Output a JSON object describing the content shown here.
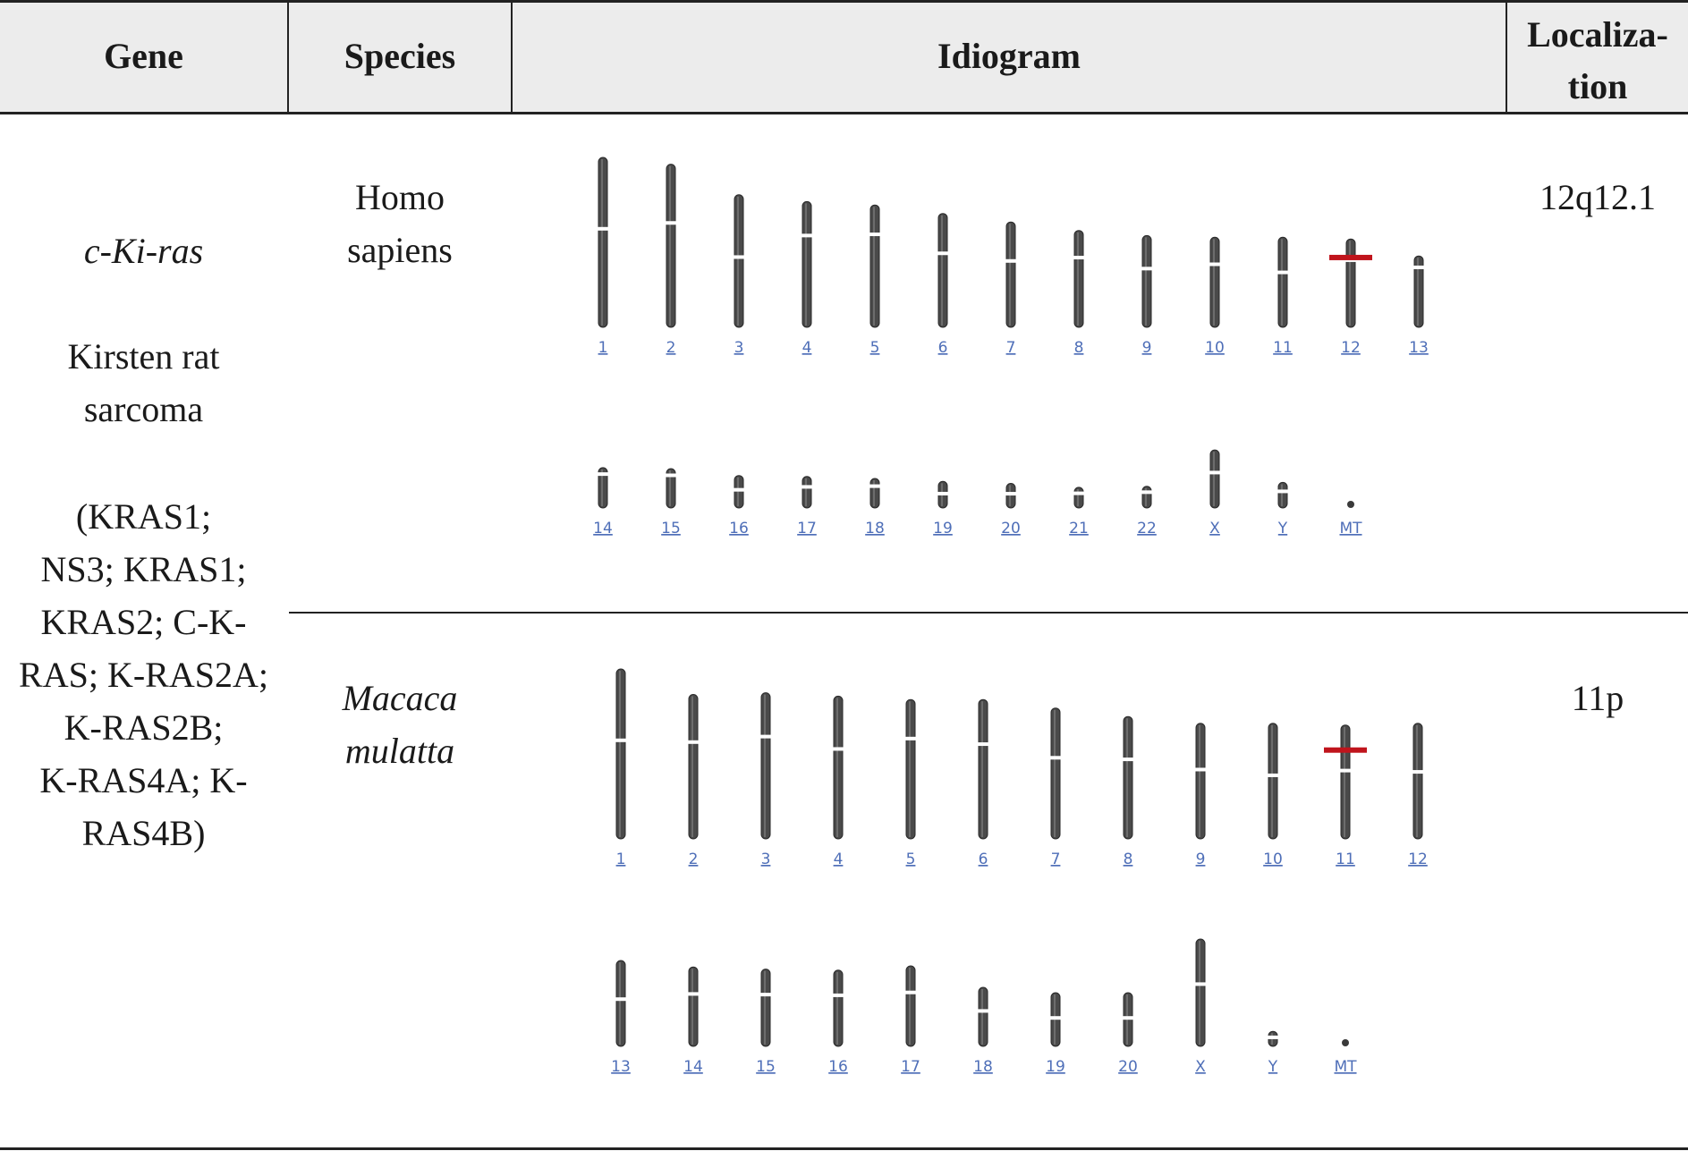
{
  "headers": {
    "gene": "Gene",
    "species": "Species",
    "idiogram": "Idiogram",
    "localization_line1": "Localiza-",
    "localization_line2": "tion"
  },
  "gene": {
    "symbol": "c-Ki-ras",
    "name_line1": "Kirsten rat",
    "name_line2": "sarcoma",
    "aliases_lines": [
      "(KRAS1;",
      "NS3; KRAS1;",
      "KRAS2; C-K-",
      "RAS; K-RAS2A;",
      "K-RAS2B;",
      "K-RAS4A; K-",
      "RAS4B)"
    ]
  },
  "rows": [
    {
      "species_line1": "Homo",
      "species_line2": "sapiens",
      "localization": "12q12.1",
      "marker_color": "#c0141c",
      "idiogram": {
        "rows": [
          [
            {
              "label": "1",
              "length": 1.0,
              "cen": 0.42
            },
            {
              "label": "2",
              "length": 0.96,
              "cen": 0.36
            },
            {
              "label": "3",
              "length": 0.78,
              "cen": 0.47
            },
            {
              "label": "4",
              "length": 0.74,
              "cen": 0.27
            },
            {
              "label": "5",
              "length": 0.72,
              "cen": 0.24
            },
            {
              "label": "6",
              "length": 0.67,
              "cen": 0.35
            },
            {
              "label": "7",
              "length": 0.62,
              "cen": 0.37
            },
            {
              "label": "8",
              "length": 0.57,
              "cen": 0.28
            },
            {
              "label": "9",
              "length": 0.54,
              "cen": 0.36
            },
            {
              "label": "10",
              "length": 0.53,
              "cen": 0.3
            },
            {
              "label": "11",
              "length": 0.53,
              "cen": 0.39
            },
            {
              "label": "12",
              "length": 0.52,
              "cen": 0.24,
              "marker": 0.21
            },
            {
              "label": "13",
              "length": 0.42,
              "cen": 0.16
            }
          ],
          [
            {
              "label": "14",
              "length": 0.41,
              "cen": 0.16
            },
            {
              "label": "15",
              "length": 0.4,
              "cen": 0.17
            },
            {
              "label": "16",
              "length": 0.33,
              "cen": 0.44
            },
            {
              "label": "17",
              "length": 0.32,
              "cen": 0.33
            },
            {
              "label": "18",
              "length": 0.3,
              "cen": 0.26
            },
            {
              "label": "19",
              "length": 0.27,
              "cen": 0.46
            },
            {
              "label": "20",
              "length": 0.25,
              "cen": 0.42
            },
            {
              "label": "21",
              "length": 0.21,
              "cen": 0.29
            },
            {
              "label": "22",
              "length": 0.22,
              "cen": 0.27
            },
            {
              "label": "X",
              "length": 0.59,
              "cen": 0.39
            },
            {
              "label": "Y",
              "length": 0.26,
              "cen": 0.35
            },
            {
              "label": "MT",
              "length": 0.03,
              "cen": -1
            }
          ]
        ]
      }
    },
    {
      "species_line1": "Macaca",
      "species_line2": "mulatta",
      "localization": "11p",
      "marker_color": "#c0141c",
      "idiogram": {
        "rows": [
          [
            {
              "label": "1",
              "length": 1.0,
              "cen": 0.42
            },
            {
              "label": "2",
              "length": 0.85,
              "cen": 0.33
            },
            {
              "label": "3",
              "length": 0.86,
              "cen": 0.3
            },
            {
              "label": "4",
              "length": 0.84,
              "cen": 0.37
            },
            {
              "label": "5",
              "length": 0.82,
              "cen": 0.28
            },
            {
              "label": "6",
              "length": 0.82,
              "cen": 0.32
            },
            {
              "label": "7",
              "length": 0.77,
              "cen": 0.38
            },
            {
              "label": "8",
              "length": 0.72,
              "cen": 0.35
            },
            {
              "label": "9",
              "length": 0.68,
              "cen": 0.4
            },
            {
              "label": "10",
              "length": 0.68,
              "cen": 0.45
            },
            {
              "label": "11",
              "length": 0.67,
              "cen": 0.4,
              "marker": 0.22
            },
            {
              "label": "12",
              "length": 0.68,
              "cen": 0.42
            }
          ],
          [
            {
              "label": "13",
              "length": 0.8,
              "cen": 0.45
            },
            {
              "label": "14",
              "length": 0.74,
              "cen": 0.34
            },
            {
              "label": "15",
              "length": 0.72,
              "cen": 0.33
            },
            {
              "label": "16",
              "length": 0.71,
              "cen": 0.33
            },
            {
              "label": "17",
              "length": 0.75,
              "cen": 0.33
            },
            {
              "label": "18",
              "length": 0.55,
              "cen": 0.4
            },
            {
              "label": "19",
              "length": 0.5,
              "cen": 0.47
            },
            {
              "label": "20",
              "length": 0.5,
              "cen": 0.47
            },
            {
              "label": "X",
              "length": 1.0,
              "cen": 0.42
            },
            {
              "label": "Y",
              "length": 0.14,
              "cen": 0.4
            },
            {
              "label": "MT",
              "length": 0.04,
              "cen": -1
            }
          ]
        ]
      }
    }
  ]
}
